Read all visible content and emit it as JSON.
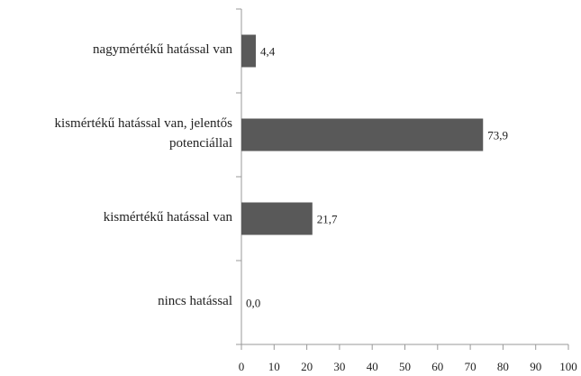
{
  "chart_data": {
    "type": "bar",
    "orientation": "horizontal",
    "categories": [
      "nagymértékű hatással van",
      "kismértékű hatással van, jelentős potenciállal",
      "kismértékű hatással van",
      "nincs hatással"
    ],
    "values": [
      4.4,
      73.9,
      21.7,
      0.0
    ],
    "value_labels": [
      "4,4",
      "73,9",
      "21,7",
      "0,0"
    ],
    "color": "#595959",
    "xlim": [
      0,
      100
    ],
    "xticks": [
      0,
      10,
      20,
      30,
      40,
      50,
      60,
      70,
      80,
      90,
      100
    ],
    "grid": false
  }
}
